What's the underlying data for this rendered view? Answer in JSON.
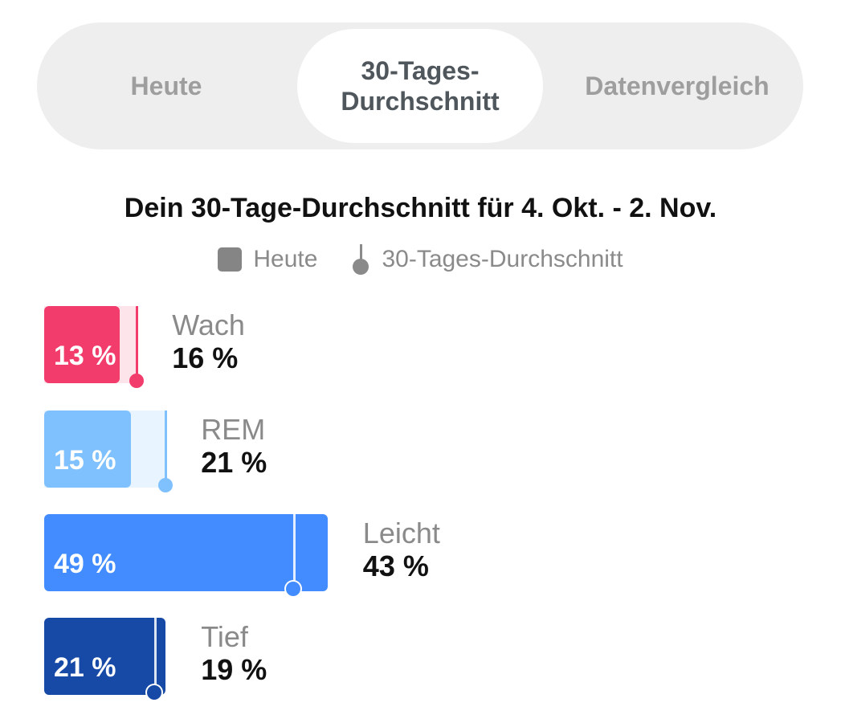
{
  "tabs": [
    {
      "label": "Heute"
    },
    {
      "label": "30-Tages-\nDurchschnitt"
    },
    {
      "label": "Datenvergleich"
    }
  ],
  "active_tab": "30-Tages-Durchschnitt",
  "heading": "Dein 30-Tage-Durchschnitt für 4. Okt. - 2. Nov.",
  "legend": {
    "today": "Heute",
    "average": "30-Tages-Durchschnitt"
  },
  "stages": [
    {
      "name": "Wach",
      "today": "13 %",
      "average": "16 %",
      "today_value": 13,
      "average_value": 16,
      "color": "#f23c6c",
      "light": "#fde4ea"
    },
    {
      "name": "REM",
      "today": "15 %",
      "average": "21 %",
      "today_value": 15,
      "average_value": 21,
      "color": "#7fc1ff",
      "light": "#e8f4ff"
    },
    {
      "name": "Leicht",
      "today": "49 %",
      "average": "43 %",
      "today_value": 49,
      "average_value": 43,
      "color": "#428cff",
      "light": "#e3efff"
    },
    {
      "name": "Tief",
      "today": "21 %",
      "average": "19 %",
      "today_value": 21,
      "average_value": 19,
      "color": "#174aa6",
      "light": "#dce6f7"
    }
  ],
  "chart_data": {
    "type": "bar",
    "categories": [
      "Wach",
      "REM",
      "Leicht",
      "Tief"
    ],
    "series": [
      {
        "name": "Heute",
        "values": [
          13,
          15,
          49,
          21
        ]
      },
      {
        "name": "30-Tages-Durchschnitt",
        "values": [
          16,
          21,
          43,
          19
        ]
      }
    ],
    "title": "Dein 30-Tage-Durchschnitt für 4. Okt. - 2. Nov.",
    "unit": "%",
    "orientation": "horizontal",
    "legend_position": "top-center"
  }
}
